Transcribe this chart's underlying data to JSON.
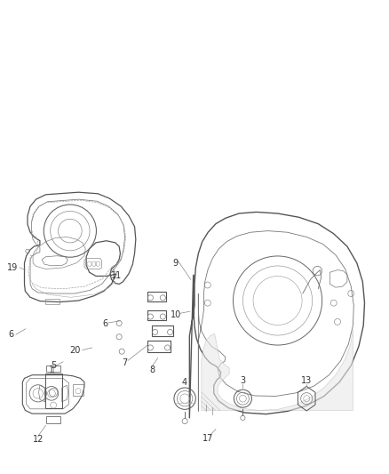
{
  "bg_color": "#ffffff",
  "fig_width": 4.38,
  "fig_height": 5.33,
  "dpi": 100,
  "lc": "#606060",
  "lw": 0.7,
  "label_fs": 7,
  "label_color": "#333333",
  "leader_color": "#888888",
  "labels": {
    "12": [
      0.095,
      0.935,
      0.115,
      0.905
    ],
    "1": [
      0.13,
      0.785,
      0.18,
      0.77
    ],
    "6a": [
      0.025,
      0.715,
      0.065,
      0.715
    ],
    "20": [
      0.19,
      0.745,
      0.215,
      0.74
    ],
    "6b": [
      0.265,
      0.68,
      0.305,
      0.675
    ],
    "7": [
      0.315,
      0.77,
      0.345,
      0.755
    ],
    "8": [
      0.385,
      0.785,
      0.41,
      0.77
    ],
    "9": [
      0.44,
      0.56,
      0.47,
      0.6
    ],
    "10": [
      0.445,
      0.67,
      0.465,
      0.665
    ],
    "11": [
      0.295,
      0.585,
      0.28,
      0.605
    ],
    "17": [
      0.535,
      0.935,
      0.565,
      0.91
    ],
    "19": [
      0.03,
      0.565,
      0.065,
      0.565
    ],
    "3": [
      0.63,
      0.21,
      0.63,
      0.185
    ],
    "4": [
      0.475,
      0.21,
      0.475,
      0.185
    ],
    "5": [
      0.135,
      0.215,
      0.135,
      0.19
    ],
    "13": [
      0.78,
      0.215,
      0.78,
      0.19
    ]
  }
}
